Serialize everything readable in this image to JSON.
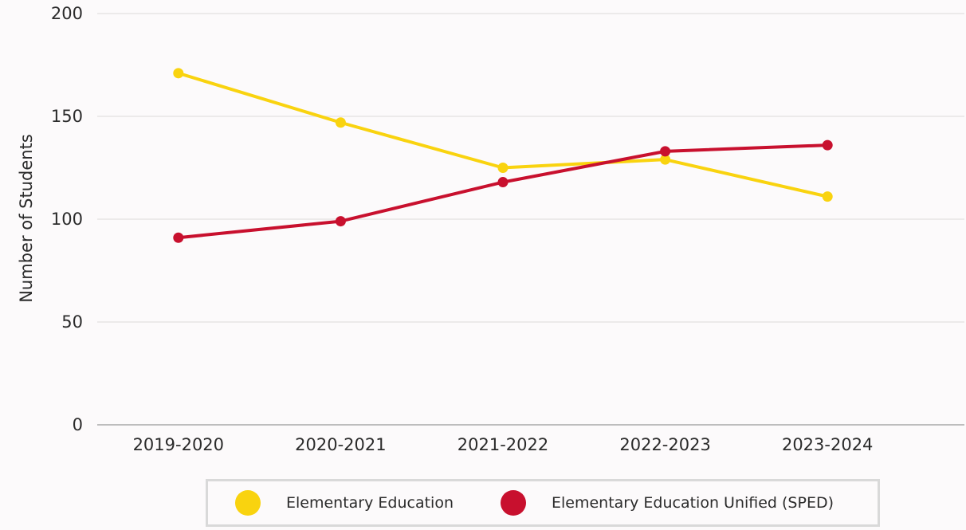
{
  "chart_data": {
    "type": "line",
    "title": "",
    "xlabel": "",
    "ylabel": "Number of Students",
    "ylim": [
      0,
      200
    ],
    "yticks": [
      0,
      50,
      100,
      150,
      200
    ],
    "grid": true,
    "legend_position": "bottom",
    "categories": [
      "2019-2020",
      "2020-2021",
      "2021-2022",
      "2022-2023",
      "2023-2024"
    ],
    "series": [
      {
        "name": "Elementary Education",
        "color": "#f9d30f",
        "values": [
          171,
          147,
          125,
          129,
          111
        ]
      },
      {
        "name": "Elementary Education Unified (SPED)",
        "color": "#c8102e",
        "values": [
          91,
          99,
          118,
          133,
          136
        ]
      }
    ]
  }
}
